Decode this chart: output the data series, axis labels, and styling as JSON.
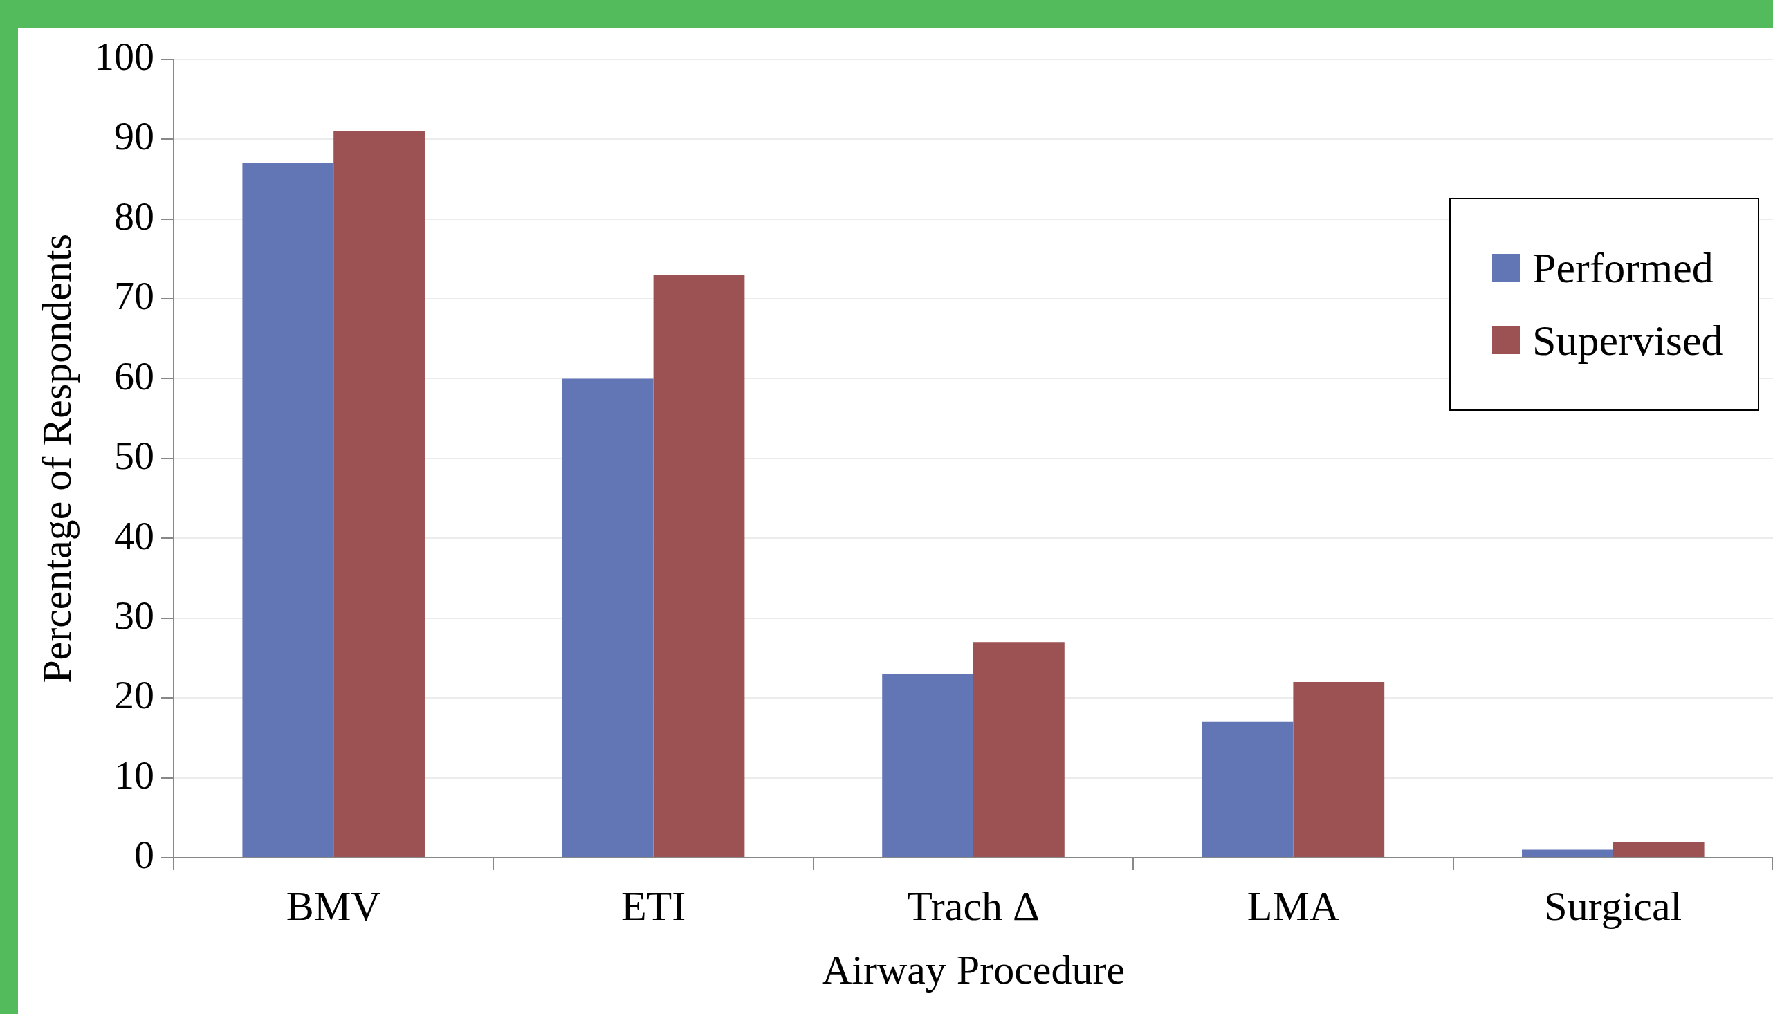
{
  "chart_data": {
    "type": "bar",
    "xlabel": "Airway Procedure",
    "ylabel": "Percentage of Respondents",
    "categories": [
      "BMV",
      "ETI",
      "Trach Δ",
      "LMA",
      "Surgical"
    ],
    "series": [
      {
        "name": "Performed",
        "color": "#6276b6",
        "values": [
          87,
          60,
          23,
          17,
          1
        ]
      },
      {
        "name": "Supervised",
        "color": "#9c5252",
        "values": [
          91,
          73,
          27,
          22,
          2
        ]
      }
    ],
    "ylim": [
      0,
      100
    ],
    "yticks": [
      0,
      10,
      20,
      30,
      40,
      50,
      60,
      70,
      80,
      90,
      100
    ],
    "grid": "y",
    "legend": "top right"
  }
}
